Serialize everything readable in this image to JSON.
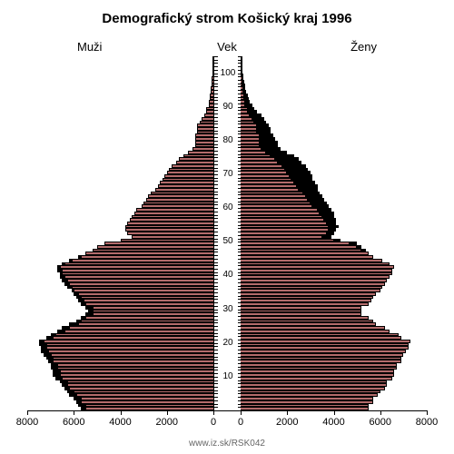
{
  "title": "Demografický strom Košický kraj 1996",
  "title_fontsize": 15,
  "label_left": "Muži",
  "label_center": "Vek",
  "label_right": "Ženy",
  "label_fontsize": 13,
  "source": "www.iz.sk/RSK042",
  "type": "population-pyramid",
  "background_color": "#ffffff",
  "bar_color": "#b36b6b",
  "bar_outline": "#000000",
  "excess_color": "#000000",
  "text_color": "#000000",
  "xmax": 8000,
  "xticks": [
    0,
    2000,
    4000,
    6000,
    8000
  ],
  "age_max": 105,
  "age_labels": [
    10,
    20,
    30,
    40,
    50,
    60,
    70,
    80,
    90,
    100
  ],
  "ages": [
    {
      "age": 0,
      "m": 5700,
      "f": 5500
    },
    {
      "age": 1,
      "m": 5800,
      "f": 5500
    },
    {
      "age": 2,
      "m": 5900,
      "f": 5700
    },
    {
      "age": 3,
      "m": 6000,
      "f": 5700
    },
    {
      "age": 4,
      "m": 6200,
      "f": 5900
    },
    {
      "age": 5,
      "m": 6300,
      "f": 6000
    },
    {
      "age": 6,
      "m": 6400,
      "f": 6200
    },
    {
      "age": 7,
      "m": 6500,
      "f": 6300
    },
    {
      "age": 8,
      "m": 6600,
      "f": 6300
    },
    {
      "age": 9,
      "m": 6800,
      "f": 6500
    },
    {
      "age": 10,
      "m": 6900,
      "f": 6600
    },
    {
      "age": 11,
      "m": 6900,
      "f": 6600
    },
    {
      "age": 12,
      "m": 7000,
      "f": 6700
    },
    {
      "age": 13,
      "m": 7000,
      "f": 6700
    },
    {
      "age": 14,
      "m": 7100,
      "f": 6900
    },
    {
      "age": 15,
      "m": 7200,
      "f": 6900
    },
    {
      "age": 16,
      "m": 7300,
      "f": 7000
    },
    {
      "age": 17,
      "m": 7400,
      "f": 7100
    },
    {
      "age": 18,
      "m": 7400,
      "f": 7200
    },
    {
      "age": 19,
      "m": 7500,
      "f": 7200
    },
    {
      "age": 20,
      "m": 7500,
      "f": 7300
    },
    {
      "age": 21,
      "m": 7200,
      "f": 6900
    },
    {
      "age": 22,
      "m": 7000,
      "f": 6800
    },
    {
      "age": 23,
      "m": 6700,
      "f": 6400
    },
    {
      "age": 24,
      "m": 6500,
      "f": 6200
    },
    {
      "age": 25,
      "m": 6200,
      "f": 5800
    },
    {
      "age": 26,
      "m": 5900,
      "f": 5700
    },
    {
      "age": 27,
      "m": 5700,
      "f": 5500
    },
    {
      "age": 28,
      "m": 5500,
      "f": 5200
    },
    {
      "age": 29,
      "m": 5400,
      "f": 5200
    },
    {
      "age": 30,
      "m": 5500,
      "f": 5200
    },
    {
      "age": 31,
      "m": 5700,
      "f": 5500
    },
    {
      "age": 32,
      "m": 5800,
      "f": 5600
    },
    {
      "age": 33,
      "m": 5900,
      "f": 5700
    },
    {
      "age": 34,
      "m": 6000,
      "f": 5800
    },
    {
      "age": 35,
      "m": 6100,
      "f": 6000
    },
    {
      "age": 36,
      "m": 6300,
      "f": 6100
    },
    {
      "age": 37,
      "m": 6400,
      "f": 6200
    },
    {
      "age": 38,
      "m": 6500,
      "f": 6300
    },
    {
      "age": 39,
      "m": 6600,
      "f": 6400
    },
    {
      "age": 40,
      "m": 6600,
      "f": 6500
    },
    {
      "age": 41,
      "m": 6700,
      "f": 6500
    },
    {
      "age": 42,
      "m": 6700,
      "f": 6600
    },
    {
      "age": 43,
      "m": 6500,
      "f": 6400
    },
    {
      "age": 44,
      "m": 6200,
      "f": 6100
    },
    {
      "age": 45,
      "m": 5800,
      "f": 5700
    },
    {
      "age": 46,
      "m": 5500,
      "f": 5500
    },
    {
      "age": 47,
      "m": 5200,
      "f": 5400
    },
    {
      "age": 48,
      "m": 5000,
      "f": 5200
    },
    {
      "age": 49,
      "m": 4700,
      "f": 5000
    },
    {
      "age": 50,
      "m": 4000,
      "f": 4300
    },
    {
      "age": 51,
      "m": 3500,
      "f": 3900
    },
    {
      "age": 52,
      "m": 3700,
      "f": 4000
    },
    {
      "age": 53,
      "m": 3800,
      "f": 4100
    },
    {
      "age": 54,
      "m": 3800,
      "f": 4200
    },
    {
      "age": 55,
      "m": 3700,
      "f": 4100
    },
    {
      "age": 56,
      "m": 3600,
      "f": 4100
    },
    {
      "age": 57,
      "m": 3500,
      "f": 4000
    },
    {
      "age": 58,
      "m": 3400,
      "f": 4000
    },
    {
      "age": 59,
      "m": 3300,
      "f": 3900
    },
    {
      "age": 60,
      "m": 3100,
      "f": 3800
    },
    {
      "age": 61,
      "m": 3000,
      "f": 3700
    },
    {
      "age": 62,
      "m": 2900,
      "f": 3600
    },
    {
      "age": 63,
      "m": 2800,
      "f": 3500
    },
    {
      "age": 64,
      "m": 2700,
      "f": 3400
    },
    {
      "age": 65,
      "m": 2500,
      "f": 3300
    },
    {
      "age": 66,
      "m": 2400,
      "f": 3300
    },
    {
      "age": 67,
      "m": 2300,
      "f": 3200
    },
    {
      "age": 68,
      "m": 2200,
      "f": 3100
    },
    {
      "age": 69,
      "m": 2100,
      "f": 3100
    },
    {
      "age": 70,
      "m": 2000,
      "f": 3000
    },
    {
      "age": 71,
      "m": 1900,
      "f": 2900
    },
    {
      "age": 72,
      "m": 1800,
      "f": 2800
    },
    {
      "age": 73,
      "m": 1600,
      "f": 2600
    },
    {
      "age": 74,
      "m": 1500,
      "f": 2500
    },
    {
      "age": 75,
      "m": 1300,
      "f": 2300
    },
    {
      "age": 76,
      "m": 1100,
      "f": 2000
    },
    {
      "age": 77,
      "m": 900,
      "f": 1700
    },
    {
      "age": 78,
      "m": 800,
      "f": 1600
    },
    {
      "age": 79,
      "m": 800,
      "f": 1600
    },
    {
      "age": 80,
      "m": 800,
      "f": 1500
    },
    {
      "age": 81,
      "m": 800,
      "f": 1400
    },
    {
      "age": 82,
      "m": 700,
      "f": 1300
    },
    {
      "age": 83,
      "m": 700,
      "f": 1300
    },
    {
      "age": 84,
      "m": 700,
      "f": 1200
    },
    {
      "age": 85,
      "m": 600,
      "f": 1100
    },
    {
      "age": 86,
      "m": 500,
      "f": 1000
    },
    {
      "age": 87,
      "m": 400,
      "f": 900
    },
    {
      "age": 88,
      "m": 300,
      "f": 700
    },
    {
      "age": 89,
      "m": 300,
      "f": 600
    },
    {
      "age": 90,
      "m": 200,
      "f": 500
    },
    {
      "age": 91,
      "m": 200,
      "f": 400
    },
    {
      "age": 92,
      "m": 150,
      "f": 350
    },
    {
      "age": 93,
      "m": 150,
      "f": 300
    },
    {
      "age": 94,
      "m": 100,
      "f": 250
    },
    {
      "age": 95,
      "m": 100,
      "f": 200
    },
    {
      "age": 96,
      "m": 80,
      "f": 180
    },
    {
      "age": 97,
      "m": 70,
      "f": 150
    },
    {
      "age": 98,
      "m": 60,
      "f": 120
    },
    {
      "age": 99,
      "m": 50,
      "f": 100
    },
    {
      "age": 100,
      "m": 40,
      "f": 80
    },
    {
      "age": 101,
      "m": 30,
      "f": 60
    },
    {
      "age": 102,
      "m": 20,
      "f": 40
    },
    {
      "age": 103,
      "m": 15,
      "f": 30
    },
    {
      "age": 104,
      "m": 10,
      "f": 20
    }
  ]
}
